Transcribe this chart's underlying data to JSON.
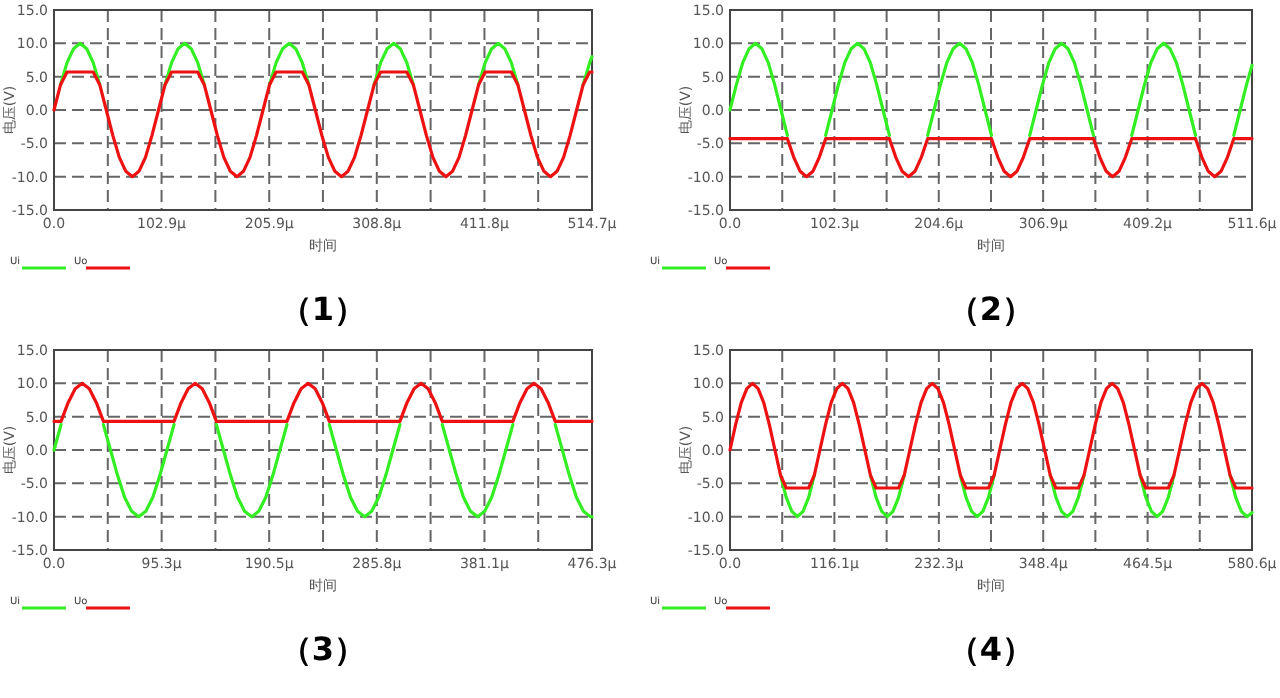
{
  "chart_data": [
    {
      "type": "line",
      "xlabel": "时间",
      "ylabel": "电压(V)",
      "annotations": [
        "（1）"
      ],
      "grid": true,
      "legend": "bottom left",
      "line_style": "solid",
      "marker": "none",
      "xlim": [
        0,
        514.7
      ],
      "xticks": [
        {
          "value": 0,
          "label": "0.0"
        },
        {
          "value": 51.5,
          "label": null
        },
        {
          "value": 102.9,
          "label": "102.9μ"
        },
        {
          "value": 154.4,
          "label": null
        },
        {
          "value": 205.9,
          "label": "205.9μ"
        },
        {
          "value": 257.3,
          "label": null
        },
        {
          "value": 308.8,
          "label": "308.8μ"
        },
        {
          "value": 360.3,
          "label": null
        },
        {
          "value": 411.8,
          "label": "411.8μ"
        },
        {
          "value": 463.2,
          "label": null
        },
        {
          "value": 514.7,
          "label": "514.7μ"
        }
      ],
      "ylim": [
        -15,
        15
      ],
      "yticks": [
        {
          "value": -15,
          "label": "-15.0"
        },
        {
          "value": -10,
          "label": "-10.0"
        },
        {
          "value": -5,
          "label": "-5.0"
        },
        {
          "value": 0,
          "label": "0.0"
        },
        {
          "value": 5,
          "label": "5.0"
        },
        {
          "value": 10,
          "label": "10.0"
        },
        {
          "value": 15,
          "label": "15.0"
        }
      ],
      "x": [
        0,
        6.25,
        12.5,
        18.75,
        25,
        31.25,
        37.5,
        43.75,
        50,
        56.25,
        62.5,
        68.75,
        75,
        81.25,
        87.5,
        93.75,
        100,
        106.25,
        112.5,
        118.75,
        125,
        131.25,
        137.5,
        143.75,
        150,
        156.25,
        162.5,
        168.75,
        175,
        181.25,
        187.5,
        193.75,
        200,
        206.25,
        212.5,
        218.75,
        225,
        231.25,
        237.5,
        243.75,
        250,
        256.25,
        262.5,
        268.75,
        275,
        281.25,
        287.5,
        293.75,
        300,
        306.25,
        312.5,
        318.75,
        325,
        331.25,
        337.5,
        343.75,
        350,
        356.25,
        362.5,
        368.75,
        375,
        381.25,
        387.5,
        393.75,
        400,
        406.25,
        412.5,
        418.75,
        425,
        431.25,
        437.5,
        443.75,
        450,
        456.25,
        462.5,
        468.75,
        475,
        481.25,
        487.5,
        493.75,
        500,
        506.25,
        512.5,
        514.7
      ],
      "series": [
        {
          "name": "Ui",
          "color": "#33ee22",
          "values": [
            null,
            3.8,
            7.1,
            9.2,
            10,
            9.2,
            7.1,
            3.8,
            null,
            null,
            null,
            null,
            null,
            null,
            null,
            null,
            null,
            3.8,
            7.1,
            9.2,
            10,
            9.2,
            7.1,
            3.8,
            null,
            null,
            null,
            null,
            null,
            null,
            null,
            null,
            null,
            3.8,
            7.1,
            9.2,
            10,
            9.2,
            7.1,
            3.8,
            null,
            null,
            null,
            null,
            null,
            null,
            null,
            null,
            null,
            3.8,
            7.1,
            9.2,
            10,
            9.2,
            7.1,
            3.8,
            null,
            null,
            null,
            null,
            null,
            null,
            null,
            null,
            null,
            3.8,
            7.1,
            9.2,
            10,
            9.2,
            7.1,
            3.8,
            null,
            null,
            null,
            null,
            null,
            null,
            null,
            null,
            null,
            3.8,
            7.1,
            8.0
          ]
        },
        {
          "name": "Uo",
          "color": "#ee1111",
          "values": [
            0,
            3.8,
            5.7,
            5.7,
            5.7,
            5.7,
            5.7,
            3.8,
            0,
            -3.8,
            -7.1,
            -9.2,
            -10,
            -9.2,
            -7.1,
            -3.8,
            0,
            3.8,
            5.7,
            5.7,
            5.7,
            5.7,
            5.7,
            3.8,
            0,
            -3.8,
            -7.1,
            -9.2,
            -10,
            -9.2,
            -7.1,
            -3.8,
            0,
            3.8,
            5.7,
            5.7,
            5.7,
            5.7,
            5.7,
            3.8,
            0,
            -3.8,
            -7.1,
            -9.2,
            -10,
            -9.2,
            -7.1,
            -3.8,
            0,
            3.8,
            5.7,
            5.7,
            5.7,
            5.7,
            5.7,
            3.8,
            0,
            -3.8,
            -7.1,
            -9.2,
            -10,
            -9.2,
            -7.1,
            -3.8,
            0,
            3.8,
            5.7,
            5.7,
            5.7,
            5.7,
            5.7,
            3.8,
            0,
            -3.8,
            -7.1,
            -9.2,
            -10,
            -9.2,
            -7.1,
            -3.8,
            0,
            3.8,
            5.7,
            5.7
          ]
        }
      ]
    },
    {
      "type": "line",
      "xlabel": "时间",
      "ylabel": "电压(V)",
      "annotations": [
        "（2）"
      ],
      "grid": true,
      "legend": "bottom left",
      "line_style": "solid",
      "marker": "none",
      "xlim": [
        0,
        511.6
      ],
      "xticks": [
        {
          "value": 0,
          "label": "0.0"
        },
        {
          "value": 51.2,
          "label": null
        },
        {
          "value": 102.3,
          "label": "102.3μ"
        },
        {
          "value": 153.5,
          "label": null
        },
        {
          "value": 204.6,
          "label": "204.6μ"
        },
        {
          "value": 255.8,
          "label": null
        },
        {
          "value": 306.9,
          "label": "306.9μ"
        },
        {
          "value": 358.1,
          "label": null
        },
        {
          "value": 409.2,
          "label": "409.2μ"
        },
        {
          "value": 460.4,
          "label": null
        },
        {
          "value": 511.6,
          "label": "511.6μ"
        }
      ],
      "ylim": [
        -15,
        15
      ],
      "yticks": [
        {
          "value": -15,
          "label": "-15.0"
        },
        {
          "value": -10,
          "label": "-10.0"
        },
        {
          "value": -5,
          "label": "-5.0"
        },
        {
          "value": 0,
          "label": "0.0"
        },
        {
          "value": 5,
          "label": "5.0"
        },
        {
          "value": 10,
          "label": "10.0"
        },
        {
          "value": 15,
          "label": "15.0"
        }
      ],
      "x": [
        0,
        6.25,
        12.5,
        18.75,
        25,
        31.25,
        37.5,
        43.75,
        50,
        56.25,
        62.5,
        68.75,
        75,
        81.25,
        87.5,
        93.75,
        100,
        106.25,
        112.5,
        118.75,
        125,
        131.25,
        137.5,
        143.75,
        150,
        156.25,
        162.5,
        168.75,
        175,
        181.25,
        187.5,
        193.75,
        200,
        206.25,
        212.5,
        218.75,
        225,
        231.25,
        237.5,
        243.75,
        250,
        256.25,
        262.5,
        268.75,
        275,
        281.25,
        287.5,
        293.75,
        300,
        306.25,
        312.5,
        318.75,
        325,
        331.25,
        337.5,
        343.75,
        350,
        356.25,
        362.5,
        368.75,
        375,
        381.25,
        387.5,
        393.75,
        400,
        406.25,
        412.5,
        418.75,
        425,
        431.25,
        437.5,
        443.75,
        450,
        456.25,
        462.5,
        468.75,
        475,
        481.25,
        487.5,
        493.75,
        500,
        506.25,
        511.6
      ],
      "series": [
        {
          "name": "Ui",
          "color": "#33ee22",
          "values": [
            0,
            3.8,
            7.1,
            9.2,
            10,
            9.2,
            7.1,
            3.8,
            0,
            -3.8,
            null,
            null,
            null,
            null,
            null,
            -3.8,
            0,
            3.8,
            7.1,
            9.2,
            10,
            9.2,
            7.1,
            3.8,
            0,
            -3.8,
            null,
            null,
            null,
            null,
            null,
            -3.8,
            0,
            3.8,
            7.1,
            9.2,
            10,
            9.2,
            7.1,
            3.8,
            0,
            -3.8,
            null,
            null,
            null,
            null,
            null,
            -3.8,
            0,
            3.8,
            7.1,
            9.2,
            10,
            9.2,
            7.1,
            3.8,
            0,
            -3.8,
            null,
            null,
            null,
            null,
            null,
            -3.8,
            0,
            3.8,
            7.1,
            9.2,
            10,
            9.2,
            7.1,
            3.8,
            0,
            -3.8,
            null,
            null,
            null,
            null,
            null,
            -3.8,
            0,
            3.8,
            6.7
          ]
        },
        {
          "name": "Uo",
          "color": "#ee1111",
          "values": [
            -4.3,
            -4.3,
            -4.3,
            -4.3,
            -4.3,
            -4.3,
            -4.3,
            -4.3,
            -4.3,
            -4.3,
            -7.1,
            -9.2,
            -10,
            -9.2,
            -7.1,
            -4.3,
            -4.3,
            -4.3,
            -4.3,
            -4.3,
            -4.3,
            -4.3,
            -4.3,
            -4.3,
            -4.3,
            -4.3,
            -7.1,
            -9.2,
            -10,
            -9.2,
            -7.1,
            -4.3,
            -4.3,
            -4.3,
            -4.3,
            -4.3,
            -4.3,
            -4.3,
            -4.3,
            -4.3,
            -4.3,
            -4.3,
            -7.1,
            -9.2,
            -10,
            -9.2,
            -7.1,
            -4.3,
            -4.3,
            -4.3,
            -4.3,
            -4.3,
            -4.3,
            -4.3,
            -4.3,
            -4.3,
            -4.3,
            -4.3,
            -7.1,
            -9.2,
            -10,
            -9.2,
            -7.1,
            -4.3,
            -4.3,
            -4.3,
            -4.3,
            -4.3,
            -4.3,
            -4.3,
            -4.3,
            -4.3,
            -4.3,
            -4.3,
            -7.1,
            -9.2,
            -10,
            -9.2,
            -7.1,
            -4.3,
            -4.3,
            -4.3,
            -4.3
          ]
        }
      ]
    },
    {
      "type": "line",
      "xlabel": "时间",
      "ylabel": "电压(V)",
      "annotations": [
        "（3）"
      ],
      "grid": true,
      "legend": "bottom left",
      "line_style": "solid",
      "marker": "none",
      "xlim": [
        0,
        476.3
      ],
      "xticks": [
        {
          "value": 0,
          "label": "0.0"
        },
        {
          "value": 47.6,
          "label": null
        },
        {
          "value": 95.3,
          "label": "95.3μ"
        },
        {
          "value": 142.9,
          "label": null
        },
        {
          "value": 190.5,
          "label": "190.5μ"
        },
        {
          "value": 238.2,
          "label": null
        },
        {
          "value": 285.8,
          "label": "285.8μ"
        },
        {
          "value": 333.4,
          "label": null
        },
        {
          "value": 381.1,
          "label": "381.1μ"
        },
        {
          "value": 428.7,
          "label": null
        },
        {
          "value": 476.3,
          "label": "476.3μ"
        }
      ],
      "ylim": [
        -15,
        15
      ],
      "yticks": [
        {
          "value": -15,
          "label": "-15.0"
        },
        {
          "value": -10,
          "label": "-10.0"
        },
        {
          "value": -5,
          "label": "-5.0"
        },
        {
          "value": 0,
          "label": "0.0"
        },
        {
          "value": 5,
          "label": "5.0"
        },
        {
          "value": 10,
          "label": "10.0"
        },
        {
          "value": 15,
          "label": "15.0"
        }
      ],
      "x": [
        0,
        6.25,
        12.5,
        18.75,
        25,
        31.25,
        37.5,
        43.75,
        50,
        56.25,
        62.5,
        68.75,
        75,
        81.25,
        87.5,
        93.75,
        100,
        106.25,
        112.5,
        118.75,
        125,
        131.25,
        137.5,
        143.75,
        150,
        156.25,
        162.5,
        168.75,
        175,
        181.25,
        187.5,
        193.75,
        200,
        206.25,
        212.5,
        218.75,
        225,
        231.25,
        237.5,
        243.75,
        250,
        256.25,
        262.5,
        268.75,
        275,
        281.25,
        287.5,
        293.75,
        300,
        306.25,
        312.5,
        318.75,
        325,
        331.25,
        337.5,
        343.75,
        350,
        356.25,
        362.5,
        368.75,
        375,
        381.25,
        387.5,
        393.75,
        400,
        406.25,
        412.5,
        418.75,
        425,
        431.25,
        437.5,
        443.75,
        450,
        456.25,
        462.5,
        468.75,
        475,
        476.3
      ],
      "series": [
        {
          "name": "Ui",
          "color": "#33ee22",
          "values": [
            0,
            3.8,
            null,
            null,
            null,
            null,
            null,
            3.8,
            0,
            -3.8,
            -7.1,
            -9.2,
            -10,
            -9.2,
            -7.1,
            -3.8,
            0,
            3.8,
            null,
            null,
            null,
            null,
            null,
            3.8,
            0,
            -3.8,
            -7.1,
            -9.2,
            -10,
            -9.2,
            -7.1,
            -3.8,
            0,
            3.8,
            null,
            null,
            null,
            null,
            null,
            3.8,
            0,
            -3.8,
            -7.1,
            -9.2,
            -10,
            -9.2,
            -7.1,
            -3.8,
            0,
            3.8,
            null,
            null,
            null,
            null,
            null,
            3.8,
            0,
            -3.8,
            -7.1,
            -9.2,
            -10,
            -9.2,
            -7.1,
            -3.8,
            0,
            3.8,
            null,
            null,
            null,
            null,
            null,
            3.8,
            0,
            -3.8,
            -7.1,
            -9.2,
            -10,
            -10.0
          ]
        },
        {
          "name": "Uo",
          "color": "#ee1111",
          "values": [
            4.3,
            4.3,
            7.1,
            9.2,
            10,
            9.2,
            7.1,
            4.3,
            4.3,
            4.3,
            4.3,
            4.3,
            4.3,
            4.3,
            4.3,
            4.3,
            4.3,
            4.3,
            7.1,
            9.2,
            10,
            9.2,
            7.1,
            4.3,
            4.3,
            4.3,
            4.3,
            4.3,
            4.3,
            4.3,
            4.3,
            4.3,
            4.3,
            4.3,
            7.1,
            9.2,
            10,
            9.2,
            7.1,
            4.3,
            4.3,
            4.3,
            4.3,
            4.3,
            4.3,
            4.3,
            4.3,
            4.3,
            4.3,
            4.3,
            7.1,
            9.2,
            10,
            9.2,
            7.1,
            4.3,
            4.3,
            4.3,
            4.3,
            4.3,
            4.3,
            4.3,
            4.3,
            4.3,
            4.3,
            4.3,
            7.1,
            9.2,
            10,
            9.2,
            7.1,
            4.3,
            4.3,
            4.3,
            4.3,
            4.3,
            4.3,
            4.3
          ]
        }
      ]
    },
    {
      "type": "line",
      "xlabel": "时间",
      "ylabel": "电压(V)",
      "annotations": [
        "（4）"
      ],
      "grid": true,
      "legend": "bottom left",
      "line_style": "solid",
      "marker": "none",
      "xlim": [
        0,
        580.6
      ],
      "xticks": [
        {
          "value": 0,
          "label": "0.0"
        },
        {
          "value": 58.1,
          "label": null
        },
        {
          "value": 116.1,
          "label": "116.1μ"
        },
        {
          "value": 174.2,
          "label": null
        },
        {
          "value": 232.3,
          "label": "232.3μ"
        },
        {
          "value": 290.3,
          "label": null
        },
        {
          "value": 348.4,
          "label": "348.4μ"
        },
        {
          "value": 406.4,
          "label": null
        },
        {
          "value": 464.5,
          "label": "464.5μ"
        },
        {
          "value": 522.5,
          "label": null
        },
        {
          "value": 580.6,
          "label": "580.6μ"
        }
      ],
      "ylim": [
        -15,
        15
      ],
      "yticks": [
        {
          "value": -15,
          "label": "-15.0"
        },
        {
          "value": -10,
          "label": "-10.0"
        },
        {
          "value": -5,
          "label": "-5.0"
        },
        {
          "value": 0,
          "label": "0.0"
        },
        {
          "value": 5,
          "label": "5.0"
        },
        {
          "value": 10,
          "label": "10.0"
        },
        {
          "value": 15,
          "label": "15.0"
        }
      ],
      "x": [
        0,
        6.25,
        12.5,
        18.75,
        25,
        31.25,
        37.5,
        43.75,
        50,
        56.25,
        62.5,
        68.75,
        75,
        81.25,
        87.5,
        93.75,
        100,
        106.25,
        112.5,
        118.75,
        125,
        131.25,
        137.5,
        143.75,
        150,
        156.25,
        162.5,
        168.75,
        175,
        181.25,
        187.5,
        193.75,
        200,
        206.25,
        212.5,
        218.75,
        225,
        231.25,
        237.5,
        243.75,
        250,
        256.25,
        262.5,
        268.75,
        275,
        281.25,
        287.5,
        293.75,
        300,
        306.25,
        312.5,
        318.75,
        325,
        331.25,
        337.5,
        343.75,
        350,
        356.25,
        362.5,
        368.75,
        375,
        381.25,
        387.5,
        393.75,
        400,
        406.25,
        412.5,
        418.75,
        425,
        431.25,
        437.5,
        443.75,
        450,
        456.25,
        462.5,
        468.75,
        475,
        481.25,
        487.5,
        493.75,
        500,
        506.25,
        512.5,
        518.75,
        525,
        531.25,
        537.5,
        543.75,
        550,
        556.25,
        562.5,
        568.75,
        575,
        580.6
      ],
      "series": [
        {
          "name": "Ui",
          "color": "#33ee22",
          "values": [
            null,
            null,
            null,
            null,
            null,
            null,
            null,
            null,
            null,
            -3.8,
            -7.1,
            -9.2,
            -10,
            -9.2,
            -7.1,
            -3.8,
            null,
            null,
            null,
            null,
            null,
            null,
            null,
            null,
            null,
            -3.8,
            -7.1,
            -9.2,
            -10,
            -9.2,
            -7.1,
            -3.8,
            null,
            null,
            null,
            null,
            null,
            null,
            null,
            null,
            null,
            -3.8,
            -7.1,
            -9.2,
            -10,
            -9.2,
            -7.1,
            -3.8,
            null,
            null,
            null,
            null,
            null,
            null,
            null,
            null,
            null,
            -3.8,
            -7.1,
            -9.2,
            -10,
            -9.2,
            -7.1,
            -3.8,
            null,
            null,
            null,
            null,
            null,
            null,
            null,
            null,
            null,
            -3.8,
            -7.1,
            -9.2,
            -10,
            -9.2,
            -7.1,
            -3.8,
            null,
            null,
            null,
            null,
            null,
            null,
            null,
            null,
            null,
            -3.8,
            -7.1,
            -9.2,
            -10,
            -9.4
          ]
        },
        {
          "name": "Uo",
          "color": "#ee1111",
          "values": [
            0,
            3.8,
            7.1,
            9.2,
            10,
            9.2,
            7.1,
            3.8,
            0,
            -3.8,
            -5.7,
            -5.7,
            -5.7,
            -5.7,
            -5.7,
            -3.8,
            0,
            3.8,
            7.1,
            9.2,
            10,
            9.2,
            7.1,
            3.8,
            0,
            -3.8,
            -5.7,
            -5.7,
            -5.7,
            -5.7,
            -5.7,
            -3.8,
            0,
            3.8,
            7.1,
            9.2,
            10,
            9.2,
            7.1,
            3.8,
            0,
            -3.8,
            -5.7,
            -5.7,
            -5.7,
            -5.7,
            -5.7,
            -3.8,
            0,
            3.8,
            7.1,
            9.2,
            10,
            9.2,
            7.1,
            3.8,
            0,
            -3.8,
            -5.7,
            -5.7,
            -5.7,
            -5.7,
            -5.7,
            -3.8,
            0,
            3.8,
            7.1,
            9.2,
            10,
            9.2,
            7.1,
            3.8,
            0,
            -3.8,
            -5.7,
            -5.7,
            -5.7,
            -5.7,
            -5.7,
            -3.8,
            0,
            3.8,
            7.1,
            9.2,
            10,
            9.2,
            7.1,
            3.8,
            0,
            -3.8,
            -5.7,
            -5.7,
            -5.7,
            -5.7
          ]
        }
      ]
    }
  ]
}
